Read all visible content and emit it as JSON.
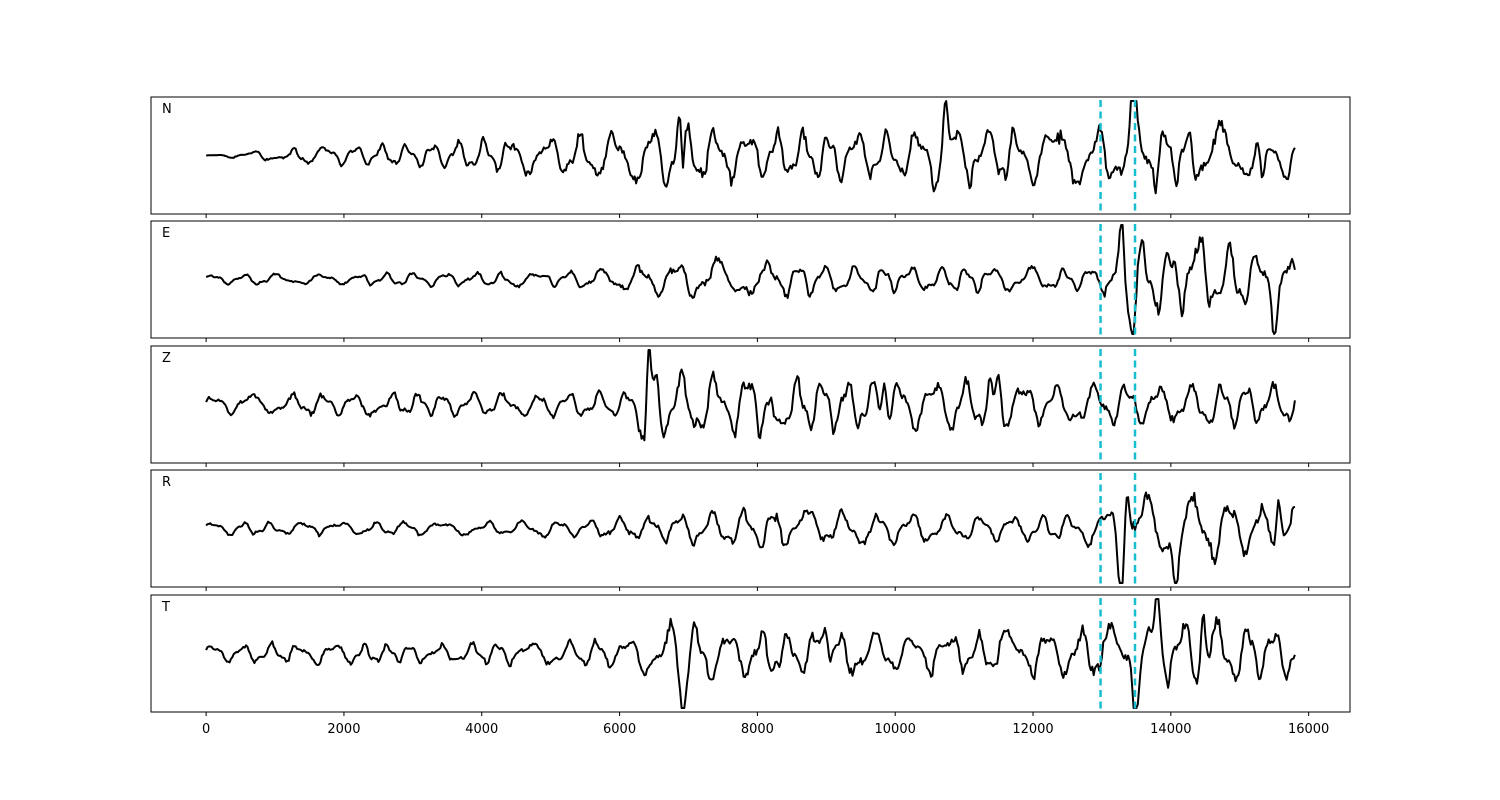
{
  "chart_data": {
    "type": "line",
    "xlim": [
      -800,
      16600
    ],
    "x_ticks": [
      0,
      2000,
      4000,
      6000,
      8000,
      10000,
      12000,
      14000,
      16000
    ],
    "x_tick_labels": [
      "0",
      "2000",
      "4000",
      "6000",
      "8000",
      "10000",
      "12000",
      "14000",
      "16000"
    ],
    "sample_range": [
      0,
      15800
    ],
    "grid": false,
    "trace_color": "#000000",
    "marker_color": "#17becf",
    "markers": [
      12980,
      13480
    ],
    "panels": [
      {
        "label": "N",
        "anchors": [
          [
            0,
            0.0
          ],
          [
            1500,
            0.2
          ],
          [
            3000,
            0.25
          ],
          [
            4000,
            0.35
          ],
          [
            5500,
            0.5
          ],
          [
            6200,
            0.55
          ],
          [
            6900,
            0.9
          ],
          [
            7400,
            0.6
          ],
          [
            8000,
            0.55
          ],
          [
            9000,
            0.55
          ],
          [
            10000,
            0.5
          ],
          [
            10700,
            0.75
          ],
          [
            11500,
            0.6
          ],
          [
            12500,
            0.7
          ],
          [
            13100,
            0.7
          ],
          [
            13480,
            0.95
          ],
          [
            14000,
            0.65
          ],
          [
            14600,
            0.7
          ],
          [
            15200,
            0.6
          ],
          [
            15800,
            0.5
          ]
        ],
        "spikes": [
          [
            6870,
            0.85
          ],
          [
            6920,
            -0.9
          ],
          [
            10730,
            0.85
          ],
          [
            13460,
            0.95
          ],
          [
            15330,
            -0.75
          ]
        ],
        "seed": 11
      },
      {
        "label": "E",
        "anchors": [
          [
            0,
            0.12
          ],
          [
            1500,
            0.12
          ],
          [
            3000,
            0.15
          ],
          [
            4000,
            0.15
          ],
          [
            5500,
            0.2
          ],
          [
            6200,
            0.3
          ],
          [
            6900,
            0.45
          ],
          [
            7400,
            0.45
          ],
          [
            8000,
            0.4
          ],
          [
            9000,
            0.35
          ],
          [
            10000,
            0.3
          ],
          [
            11000,
            0.3
          ],
          [
            12500,
            0.25
          ],
          [
            13000,
            0.3
          ],
          [
            13300,
            0.8
          ],
          [
            13480,
            0.85
          ],
          [
            14000,
            0.75
          ],
          [
            14500,
            0.9
          ],
          [
            15200,
            0.6
          ],
          [
            15800,
            0.5
          ]
        ],
        "spikes": [
          [
            13300,
            0.8
          ],
          [
            13440,
            -0.8
          ],
          [
            14480,
            0.95
          ],
          [
            15500,
            -0.65
          ]
        ],
        "seed": 23
      },
      {
        "label": "Z",
        "anchors": [
          [
            0,
            0.2
          ],
          [
            1500,
            0.25
          ],
          [
            3000,
            0.25
          ],
          [
            4000,
            0.25
          ],
          [
            5500,
            0.3
          ],
          [
            6200,
            0.3
          ],
          [
            6400,
            0.9
          ],
          [
            7400,
            0.75
          ],
          [
            8000,
            0.7
          ],
          [
            9000,
            0.6
          ],
          [
            10000,
            0.55
          ],
          [
            10700,
            0.6
          ],
          [
            11500,
            0.55
          ],
          [
            12500,
            0.5
          ],
          [
            13100,
            0.45
          ],
          [
            13480,
            0.5
          ],
          [
            14000,
            0.4
          ],
          [
            14600,
            0.5
          ],
          [
            15200,
            0.45
          ],
          [
            15800,
            0.45
          ]
        ],
        "spikes": [
          [
            6420,
            0.95
          ],
          [
            6380,
            -0.65
          ],
          [
            8260,
            -0.8
          ],
          [
            9850,
            0.6
          ],
          [
            11500,
            0.6
          ]
        ],
        "seed": 37
      },
      {
        "label": "R",
        "anchors": [
          [
            0,
            0.15
          ],
          [
            1500,
            0.15
          ],
          [
            3000,
            0.15
          ],
          [
            4000,
            0.15
          ],
          [
            5500,
            0.2
          ],
          [
            6200,
            0.25
          ],
          [
            6900,
            0.35
          ],
          [
            7400,
            0.4
          ],
          [
            8000,
            0.45
          ],
          [
            9000,
            0.4
          ],
          [
            10000,
            0.35
          ],
          [
            11000,
            0.3
          ],
          [
            12500,
            0.3
          ],
          [
            13000,
            0.4
          ],
          [
            13300,
            0.9
          ],
          [
            13480,
            0.85
          ],
          [
            14000,
            0.7
          ],
          [
            14500,
            0.8
          ],
          [
            15200,
            0.55
          ],
          [
            15800,
            0.55
          ]
        ],
        "spikes": [
          [
            13360,
            0.95
          ],
          [
            13270,
            -0.85
          ],
          [
            14070,
            -0.9
          ],
          [
            15560,
            0.7
          ]
        ],
        "seed": 51
      },
      {
        "label": "T",
        "anchors": [
          [
            0,
            0.2
          ],
          [
            1500,
            0.25
          ],
          [
            3000,
            0.2
          ],
          [
            4000,
            0.25
          ],
          [
            5500,
            0.3
          ],
          [
            6200,
            0.35
          ],
          [
            6900,
            0.75
          ],
          [
            7400,
            0.55
          ],
          [
            8000,
            0.5
          ],
          [
            9000,
            0.55
          ],
          [
            10000,
            0.45
          ],
          [
            11000,
            0.45
          ],
          [
            12500,
            0.55
          ],
          [
            13100,
            0.6
          ],
          [
            13480,
            0.75
          ],
          [
            14000,
            0.75
          ],
          [
            14500,
            0.8
          ],
          [
            15200,
            0.65
          ],
          [
            15800,
            0.55
          ]
        ],
        "spikes": [
          [
            9000,
            0.8
          ],
          [
            6920,
            -0.9
          ],
          [
            13800,
            0.9
          ],
          [
            14470,
            0.9
          ],
          [
            13480,
            -0.75
          ]
        ],
        "seed": 73
      }
    ]
  }
}
